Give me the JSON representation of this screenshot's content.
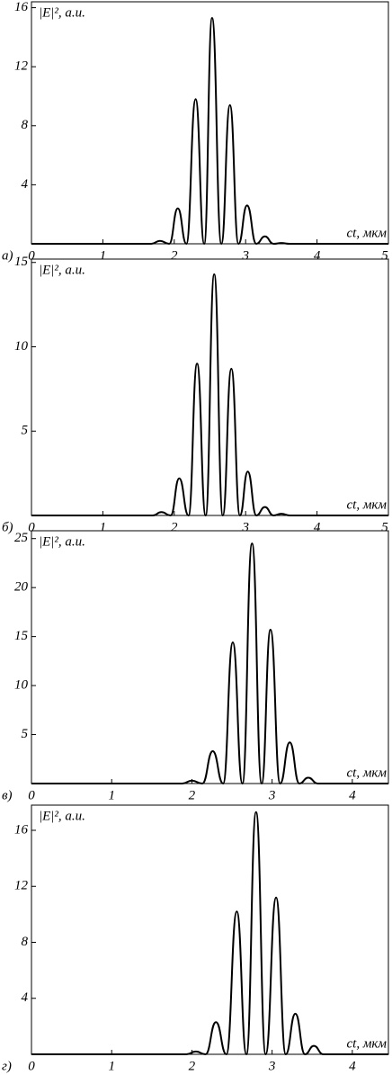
{
  "chart_data": [
    {
      "type": "line",
      "panel_label": "а)",
      "ylabel": "|E|², a.u.",
      "xlabel": "ct, мкм",
      "color": "#000000",
      "x": [
        0,
        1.68,
        1.8,
        1.93,
        2.05,
        2.17,
        2.3,
        2.42,
        2.53,
        2.66,
        2.78,
        2.9,
        3.02,
        3.15,
        3.27,
        3.39,
        3.5,
        3.62,
        5
      ],
      "values": [
        0,
        0,
        0.2,
        0,
        2.4,
        0,
        9.8,
        0,
        15.3,
        0,
        9.4,
        0,
        2.6,
        0,
        0.5,
        0,
        0.05,
        0,
        0
      ],
      "xlim": [
        0,
        5
      ],
      "ylim": [
        0,
        16.4
      ],
      "xticks": [
        0,
        1,
        2,
        3,
        4,
        5
      ],
      "yticks": [
        4,
        8,
        12,
        16
      ]
    },
    {
      "type": "line",
      "panel_label": "б)",
      "ylabel": "|E|², a.u.",
      "xlabel": "ct, мкм",
      "color": "#000000",
      "x": [
        0,
        1.7,
        1.82,
        1.95,
        2.07,
        2.2,
        2.32,
        2.44,
        2.56,
        2.68,
        2.8,
        2.92,
        3.03,
        3.15,
        3.27,
        3.39,
        3.5,
        3.62,
        5
      ],
      "values": [
        0,
        0,
        0.2,
        0,
        2.2,
        0,
        9.0,
        0,
        14.3,
        0,
        8.7,
        0,
        2.6,
        0,
        0.5,
        0,
        0.1,
        0,
        0
      ],
      "xlim": [
        0,
        5
      ],
      "ylim": [
        0,
        15.2
      ],
      "xticks": [
        0,
        1,
        2,
        3,
        4,
        5
      ],
      "yticks": [
        5,
        10,
        15
      ]
    },
    {
      "type": "line",
      "panel_label": "в)",
      "ylabel": "|E|², a.u.",
      "xlabel": "ct, мкм",
      "color": "#000000",
      "x": [
        0,
        1.88,
        2.0,
        2.13,
        2.26,
        2.39,
        2.51,
        2.63,
        2.75,
        2.87,
        2.98,
        3.1,
        3.22,
        3.34,
        3.45,
        3.57,
        4.45
      ],
      "values": [
        0,
        0,
        0.3,
        0,
        3.3,
        0,
        14.4,
        0,
        24.5,
        0,
        15.7,
        0,
        4.2,
        0,
        0.6,
        0,
        0
      ],
      "xlim": [
        0,
        4.45
      ],
      "ylim": [
        0,
        25.8
      ],
      "xticks": [
        0,
        1,
        2,
        3,
        4
      ],
      "yticks": [
        5,
        10,
        15,
        20,
        25
      ]
    },
    {
      "type": "line",
      "panel_label": "г)",
      "ylabel": "|E|², a.u.",
      "xlabel": "ct, мкм",
      "color": "#000000",
      "x": [
        0,
        1.93,
        2.05,
        2.17,
        2.3,
        2.43,
        2.56,
        2.68,
        2.8,
        2.92,
        3.05,
        3.17,
        3.29,
        3.41,
        3.52,
        3.64,
        4.45
      ],
      "values": [
        0,
        0,
        0.2,
        0,
        2.3,
        0,
        10.2,
        0,
        17.3,
        0,
        11.2,
        0,
        2.9,
        0,
        0.6,
        0,
        0
      ],
      "xlim": [
        0,
        4.45
      ],
      "ylim": [
        0,
        17.8
      ],
      "xticks": [
        0,
        1,
        2,
        3,
        4
      ],
      "yticks": [
        4,
        8,
        12,
        16
      ]
    }
  ]
}
